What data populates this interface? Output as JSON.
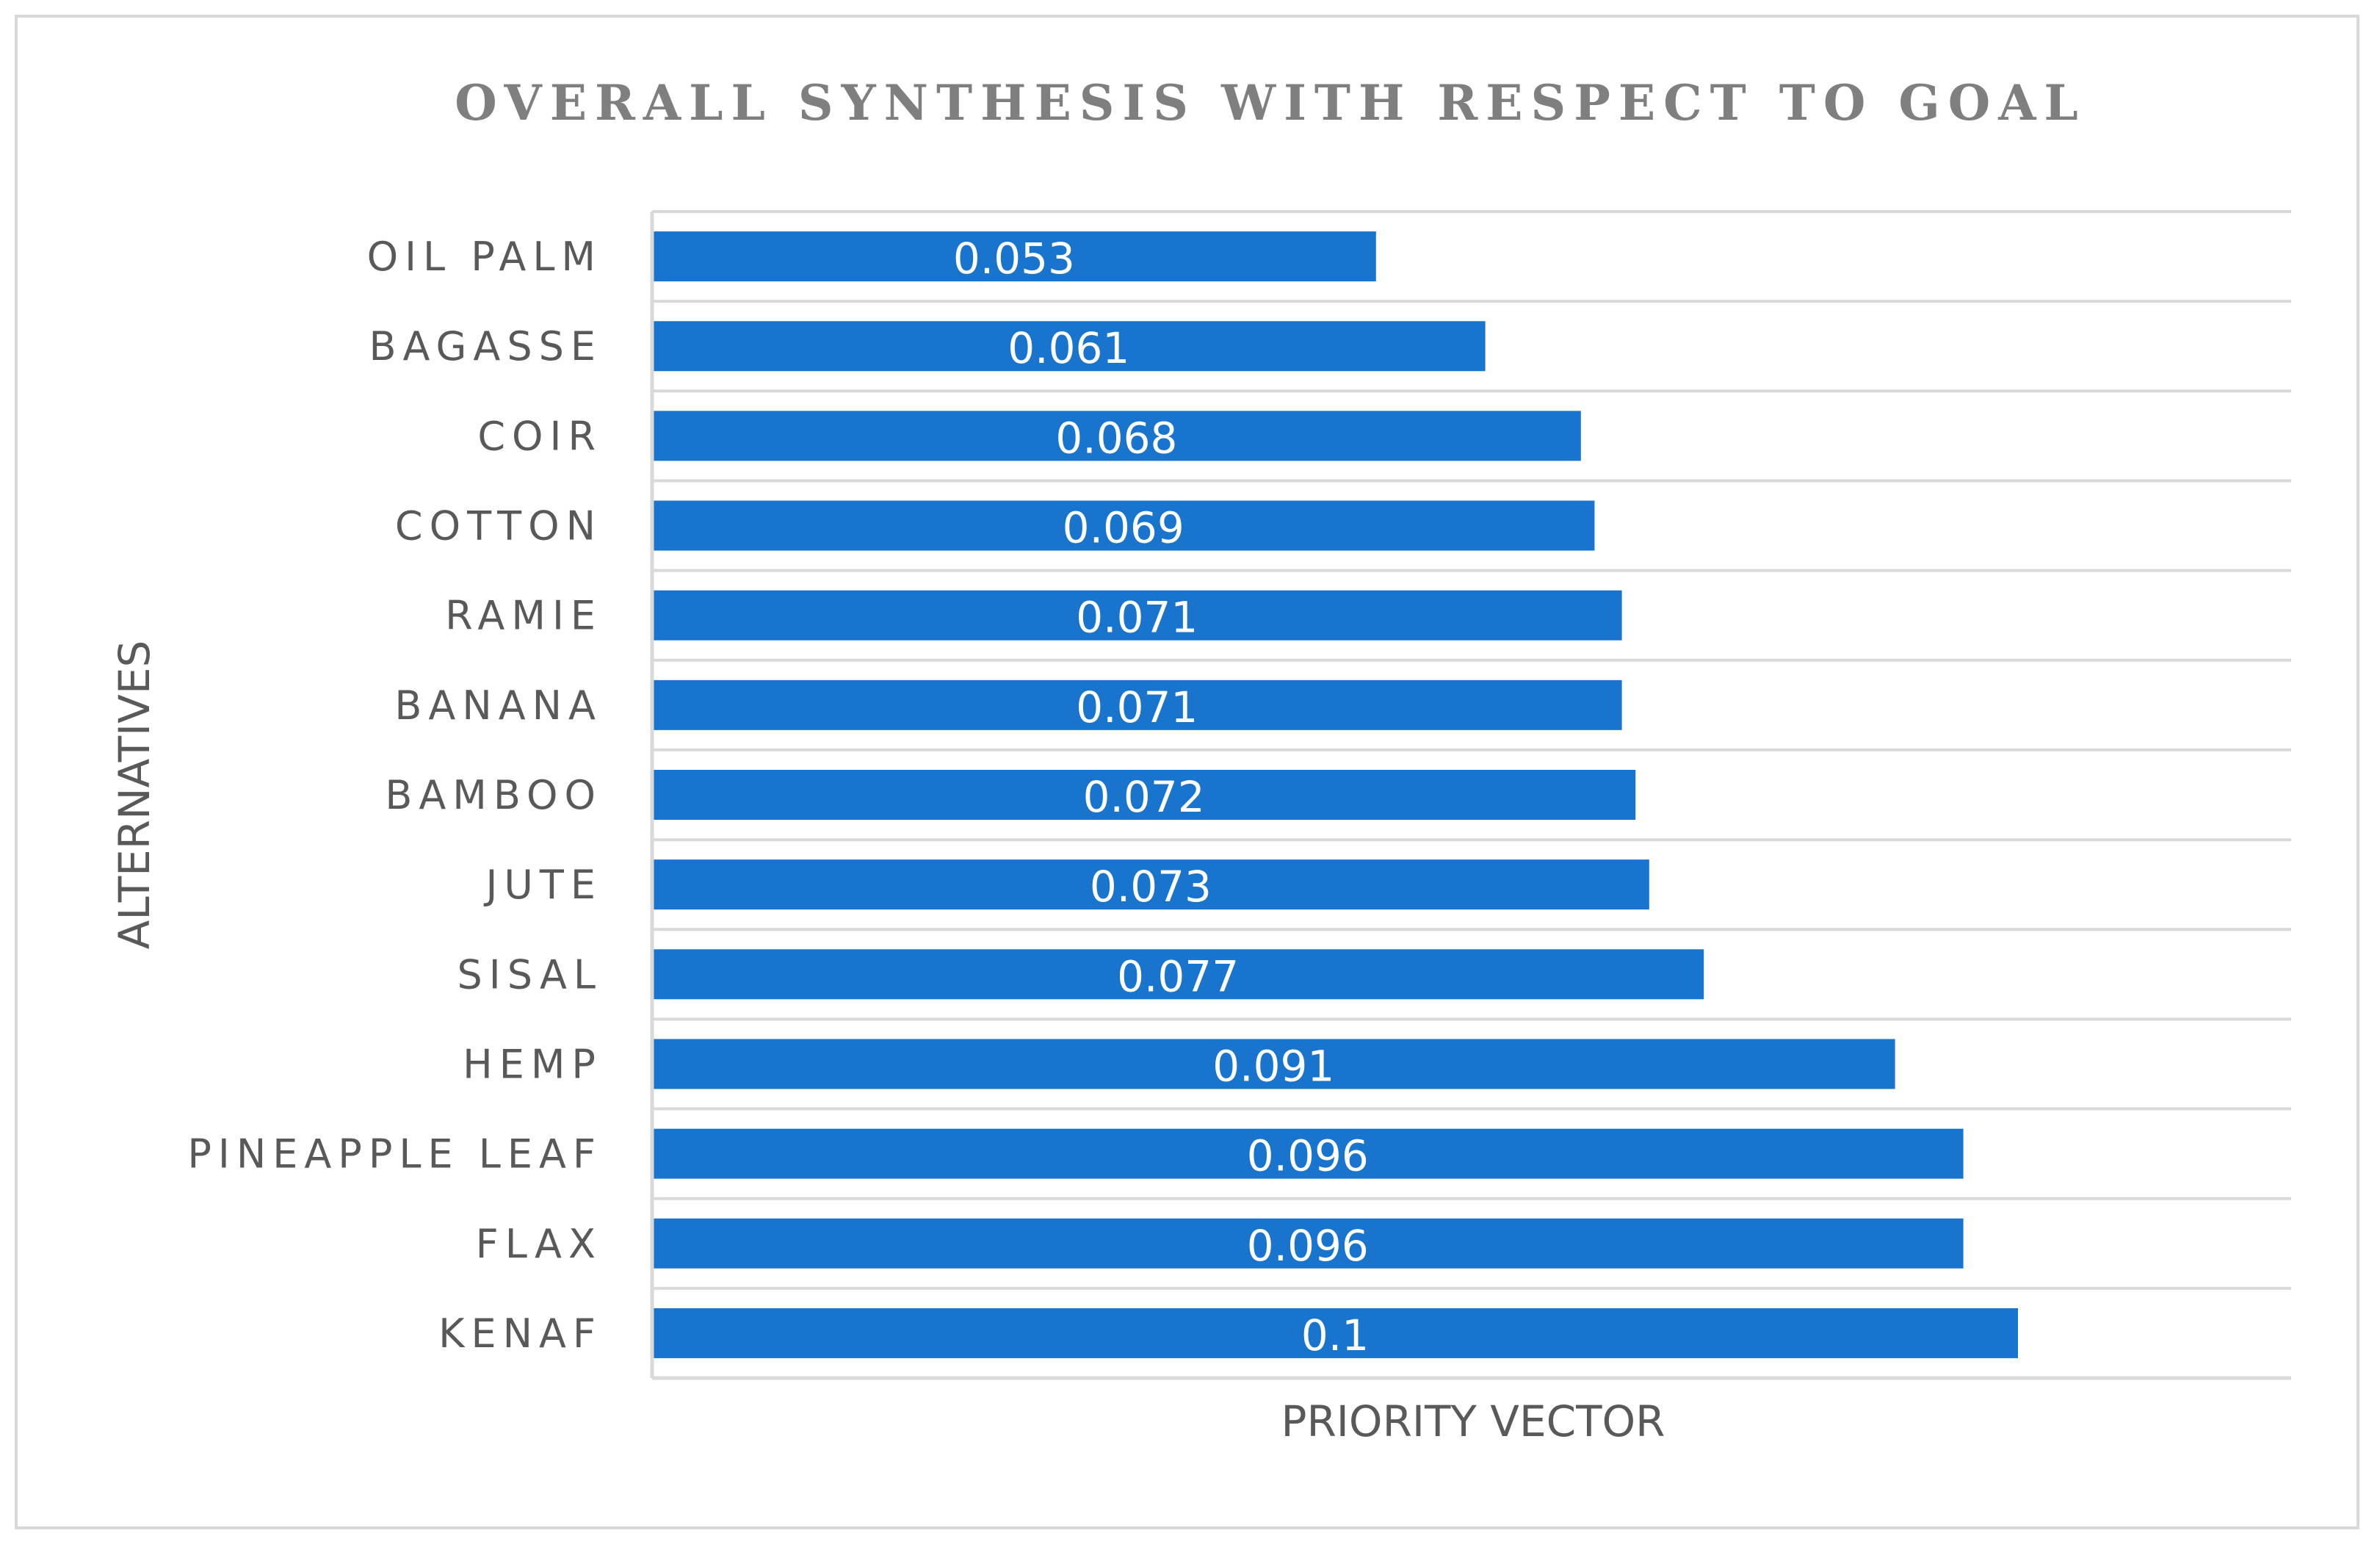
{
  "chart_data": {
    "type": "bar",
    "orientation": "horizontal",
    "title": "OVERALL SYNTHESIS WITH RESPECT TO GOAL",
    "xlabel": "PRIORITY VECTOR",
    "ylabel": "ALTERNATIVES",
    "categories": [
      "OIL PALM",
      "BAGASSE",
      "COIR",
      "COTTON",
      "RAMIE",
      "BANANA",
      "BAMBOO",
      "JUTE",
      "SISAL",
      "HEMP",
      "PINEAPPLE LEAF",
      "FLAX",
      "KENAF"
    ],
    "values": [
      0.053,
      0.061,
      0.068,
      0.069,
      0.071,
      0.071,
      0.072,
      0.073,
      0.077,
      0.091,
      0.096,
      0.096,
      0.1
    ],
    "value_labels": [
      "0.053",
      "0.061",
      "0.068",
      "0.069",
      "0.071",
      "0.071",
      "0.072",
      "0.073",
      "0.077",
      "0.091",
      "0.096",
      "0.096",
      "0.1"
    ],
    "xlim": [
      0,
      0.12
    ],
    "grid": true,
    "legend": "none",
    "bar_color": "#1874CD"
  }
}
